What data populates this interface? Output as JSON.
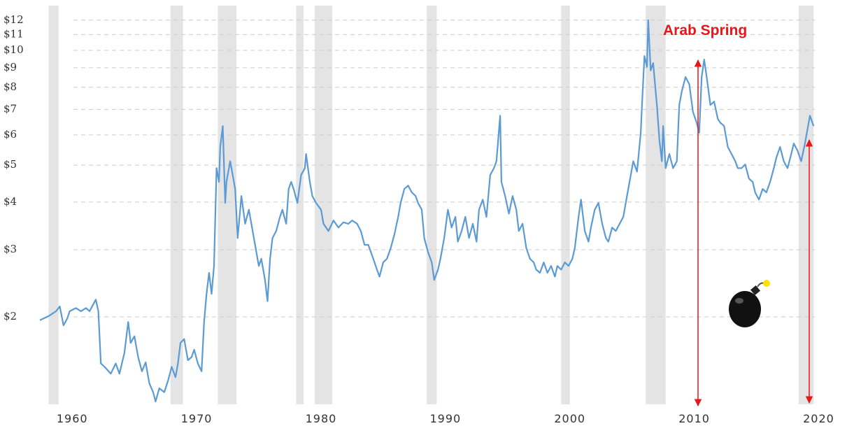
{
  "chart_data": {
    "type": "line",
    "annotation": "Arab Spring",
    "color": "#5b9bd5",
    "recession_color": "#e4e4e4",
    "grid": true,
    "y_log_scale": true,
    "xlim": [
      1957.4,
      2020.2
    ],
    "xticks": [
      1960,
      1970,
      1980,
      1990,
      2000,
      2010,
      2020
    ],
    "ylim": [
      1.18,
      13.1
    ],
    "yticks": [
      {
        "value": 2,
        "label": "$2"
      },
      {
        "value": 3,
        "label": "$3"
      },
      {
        "value": 4,
        "label": "$4"
      },
      {
        "value": 5,
        "label": "$5"
      },
      {
        "value": 6,
        "label": "$6"
      },
      {
        "value": 7,
        "label": "$7"
      },
      {
        "value": 8,
        "label": "$8"
      },
      {
        "value": 9,
        "label": "$9"
      },
      {
        "value": 10,
        "label": "$10"
      },
      {
        "value": 11,
        "label": "$11"
      },
      {
        "value": 12,
        "label": "$12"
      }
    ],
    "recessions": [
      [
        1958.1,
        1958.9
      ],
      [
        1967.9,
        1968.9
      ],
      [
        1971.7,
        1973.2
      ],
      [
        1978.0,
        1978.6
      ],
      [
        1979.5,
        1980.9
      ],
      [
        1988.5,
        1989.3
      ],
      [
        1999.3,
        2000.0
      ],
      [
        2006.1,
        2007.7
      ],
      [
        2018.4,
        2019.6
      ]
    ],
    "x": [
      1957.4,
      1958.1,
      1958.7,
      1959.0,
      1959.3,
      1959.6,
      1959.8,
      1960.3,
      1960.7,
      1961.1,
      1961.4,
      1961.7,
      1961.9,
      1962.1,
      1962.3,
      1962.6,
      1963.1,
      1963.5,
      1963.8,
      1964.2,
      1964.5,
      1964.7,
      1965.0,
      1965.3,
      1965.6,
      1965.9,
      1966.2,
      1966.5,
      1966.7,
      1967.0,
      1967.4,
      1967.7,
      1968.0,
      1968.3,
      1968.5,
      1968.7,
      1969.0,
      1969.3,
      1969.6,
      1969.8,
      1970.1,
      1970.4,
      1970.6,
      1970.8,
      1971.0,
      1971.2,
      1971.4,
      1971.6,
      1971.8,
      1971.9,
      1972.1,
      1972.3,
      1972.4,
      1972.7,
      1972.9,
      1973.1,
      1973.3,
      1973.6,
      1973.9,
      1974.2,
      1974.5,
      1974.7,
      1975.0,
      1975.2,
      1975.5,
      1975.7,
      1975.9,
      1976.1,
      1976.4,
      1976.7,
      1976.9,
      1977.2,
      1977.4,
      1977.6,
      1977.8,
      1978.1,
      1978.4,
      1978.7,
      1978.8,
      1979.1,
      1979.3,
      1979.6,
      1980.0,
      1980.2,
      1980.6,
      1981.0,
      1981.4,
      1981.8,
      1982.2,
      1982.5,
      1982.9,
      1983.2,
      1983.5,
      1983.8,
      1984.2,
      1984.5,
      1984.7,
      1985.0,
      1985.3,
      1985.6,
      1985.9,
      1986.2,
      1986.4,
      1986.7,
      1987.0,
      1987.3,
      1987.6,
      1987.8,
      1988.1,
      1988.3,
      1988.6,
      1988.9,
      1989.1,
      1989.4,
      1989.6,
      1989.9,
      1990.2,
      1990.5,
      1990.8,
      1991.0,
      1991.3,
      1991.6,
      1991.9,
      1992.2,
      1992.5,
      1992.7,
      1993.0,
      1993.3,
      1993.6,
      1993.9,
      1994.1,
      1994.4,
      1994.5,
      1994.8,
      1995.1,
      1995.4,
      1995.7,
      1995.9,
      1996.2,
      1996.5,
      1996.8,
      1997.1,
      1997.3,
      1997.6,
      1997.9,
      1998.2,
      1998.5,
      1998.8,
      1999.0,
      1999.3,
      1999.6,
      1999.9,
      2000.2,
      2000.4,
      2000.7,
      2000.9,
      2001.2,
      2001.5,
      2001.7,
      2002.0,
      2002.3,
      2002.6,
      2002.9,
      2003.1,
      2003.4,
      2003.7,
      2004.0,
      2004.3,
      2004.5,
      2004.8,
      2005.1,
      2005.4,
      2005.7,
      2005.8,
      2006.0,
      2006.2,
      2006.3,
      2006.5,
      2006.7,
      2006.9,
      2007.0,
      2007.2,
      2007.4,
      2007.5,
      2007.7,
      2008.0,
      2008.3,
      2008.6,
      2008.8,
      2009.0,
      2009.3,
      2009.6,
      2009.9,
      2010.2,
      2010.4,
      2010.6,
      2010.8,
      2011.0,
      2011.3,
      2011.6,
      2011.9,
      2012.1,
      2012.4,
      2012.7,
      2013.0,
      2013.3,
      2013.5,
      2013.8,
      2014.1,
      2014.4,
      2014.7,
      2014.9,
      2015.2,
      2015.5,
      2015.8,
      2016.1,
      2016.4,
      2016.6,
      2016.9,
      2017.2,
      2017.5,
      2017.8,
      2018.0,
      2018.3,
      2018.6,
      2018.9,
      2019.2,
      2019.3,
      2019.6
    ],
    "values": [
      1.96,
      2.01,
      2.07,
      2.13,
      1.9,
      1.98,
      2.07,
      2.11,
      2.07,
      2.11,
      2.07,
      2.16,
      2.22,
      2.07,
      1.51,
      1.48,
      1.42,
      1.51,
      1.42,
      1.61,
      1.94,
      1.71,
      1.78,
      1.57,
      1.44,
      1.52,
      1.34,
      1.27,
      1.2,
      1.3,
      1.27,
      1.36,
      1.48,
      1.39,
      1.51,
      1.71,
      1.75,
      1.54,
      1.57,
      1.64,
      1.51,
      1.44,
      1.94,
      2.3,
      2.61,
      2.3,
      2.72,
      4.91,
      4.52,
      5.58,
      6.33,
      3.98,
      4.52,
      5.12,
      4.71,
      4.33,
      3.22,
      4.15,
      3.51,
      3.82,
      3.36,
      3.09,
      2.72,
      2.84,
      2.5,
      2.2,
      2.84,
      3.22,
      3.36,
      3.66,
      3.82,
      3.51,
      4.33,
      4.52,
      4.33,
      3.98,
      4.71,
      4.91,
      5.35,
      4.52,
      4.15,
      3.98,
      3.82,
      3.51,
      3.36,
      3.58,
      3.43,
      3.54,
      3.51,
      3.58,
      3.51,
      3.36,
      3.09,
      3.09,
      2.84,
      2.66,
      2.55,
      2.78,
      2.84,
      3.03,
      3.29,
      3.66,
      3.98,
      4.33,
      4.42,
      4.24,
      4.15,
      3.98,
      3.82,
      3.22,
      2.96,
      2.78,
      2.5,
      2.66,
      2.84,
      3.22,
      3.82,
      3.43,
      3.66,
      3.15,
      3.36,
      3.66,
      3.22,
      3.51,
      3.15,
      3.82,
      4.06,
      3.66,
      4.71,
      4.91,
      5.12,
      6.74,
      4.52,
      4.15,
      3.73,
      4.15,
      3.82,
      3.36,
      3.51,
      3.03,
      2.84,
      2.78,
      2.66,
      2.61,
      2.78,
      2.61,
      2.72,
      2.55,
      2.72,
      2.66,
      2.78,
      2.72,
      2.84,
      3.03,
      3.66,
      4.06,
      3.36,
      3.15,
      3.43,
      3.82,
      3.98,
      3.51,
      3.22,
      3.15,
      3.43,
      3.36,
      3.51,
      3.66,
      3.98,
      4.52,
      5.12,
      4.81,
      6.08,
      7.19,
      9.66,
      9.05,
      12.0,
      8.86,
      9.26,
      7.81,
      7.19,
      5.82,
      5.12,
      6.33,
      4.91,
      5.35,
      4.91,
      5.12,
      7.19,
      7.81,
      8.51,
      8.15,
      6.89,
      6.46,
      6.08,
      8.51,
      9.46,
      8.51,
      7.19,
      7.34,
      6.6,
      6.46,
      6.33,
      5.58,
      5.35,
      5.12,
      4.91,
      4.91,
      5.02,
      4.61,
      4.52,
      4.24,
      4.06,
      4.33,
      4.24,
      4.52,
      4.91,
      5.23,
      5.58,
      5.12,
      4.91,
      5.35,
      5.7,
      5.46,
      5.12,
      5.7,
      6.46,
      6.74,
      6.33
    ]
  }
}
